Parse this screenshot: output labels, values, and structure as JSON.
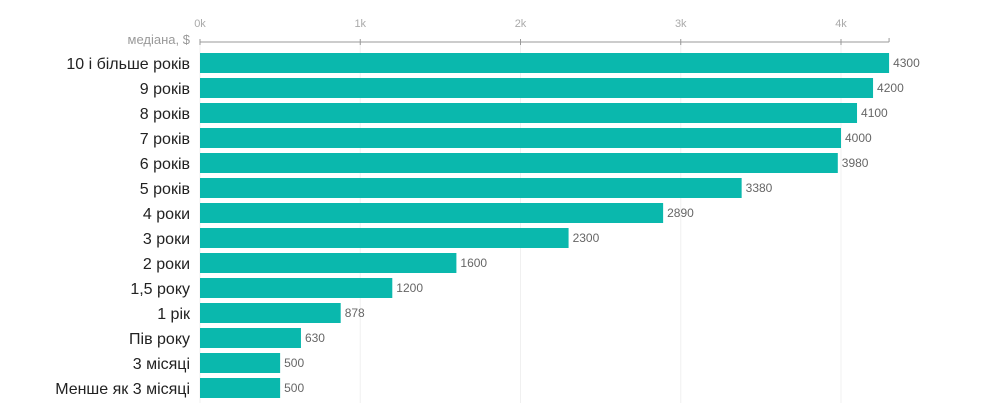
{
  "chart_data": {
    "type": "bar",
    "orientation": "horizontal",
    "title": "",
    "xlabel": "медіана, $",
    "ylabel": "",
    "xlim": [
      0,
      4300
    ],
    "x_ticks": [
      0,
      1000,
      2000,
      3000,
      4000
    ],
    "x_tick_labels": [
      "0k",
      "1k",
      "2k",
      "3k",
      "4k"
    ],
    "grid": true,
    "bar_color": "#0ab8ad",
    "categories": [
      "10 і більше років",
      "9 років",
      "8 років",
      "7 років",
      "6 років",
      "5 років",
      "4 роки",
      "3 роки",
      "2 роки",
      "1,5 року",
      "1 рік",
      "Пів року",
      "3 місяці",
      "Менше як 3 місяці"
    ],
    "values": [
      4300,
      4200,
      4100,
      4000,
      3980,
      3380,
      2890,
      2300,
      1600,
      1200,
      878,
      630,
      500,
      500
    ]
  }
}
